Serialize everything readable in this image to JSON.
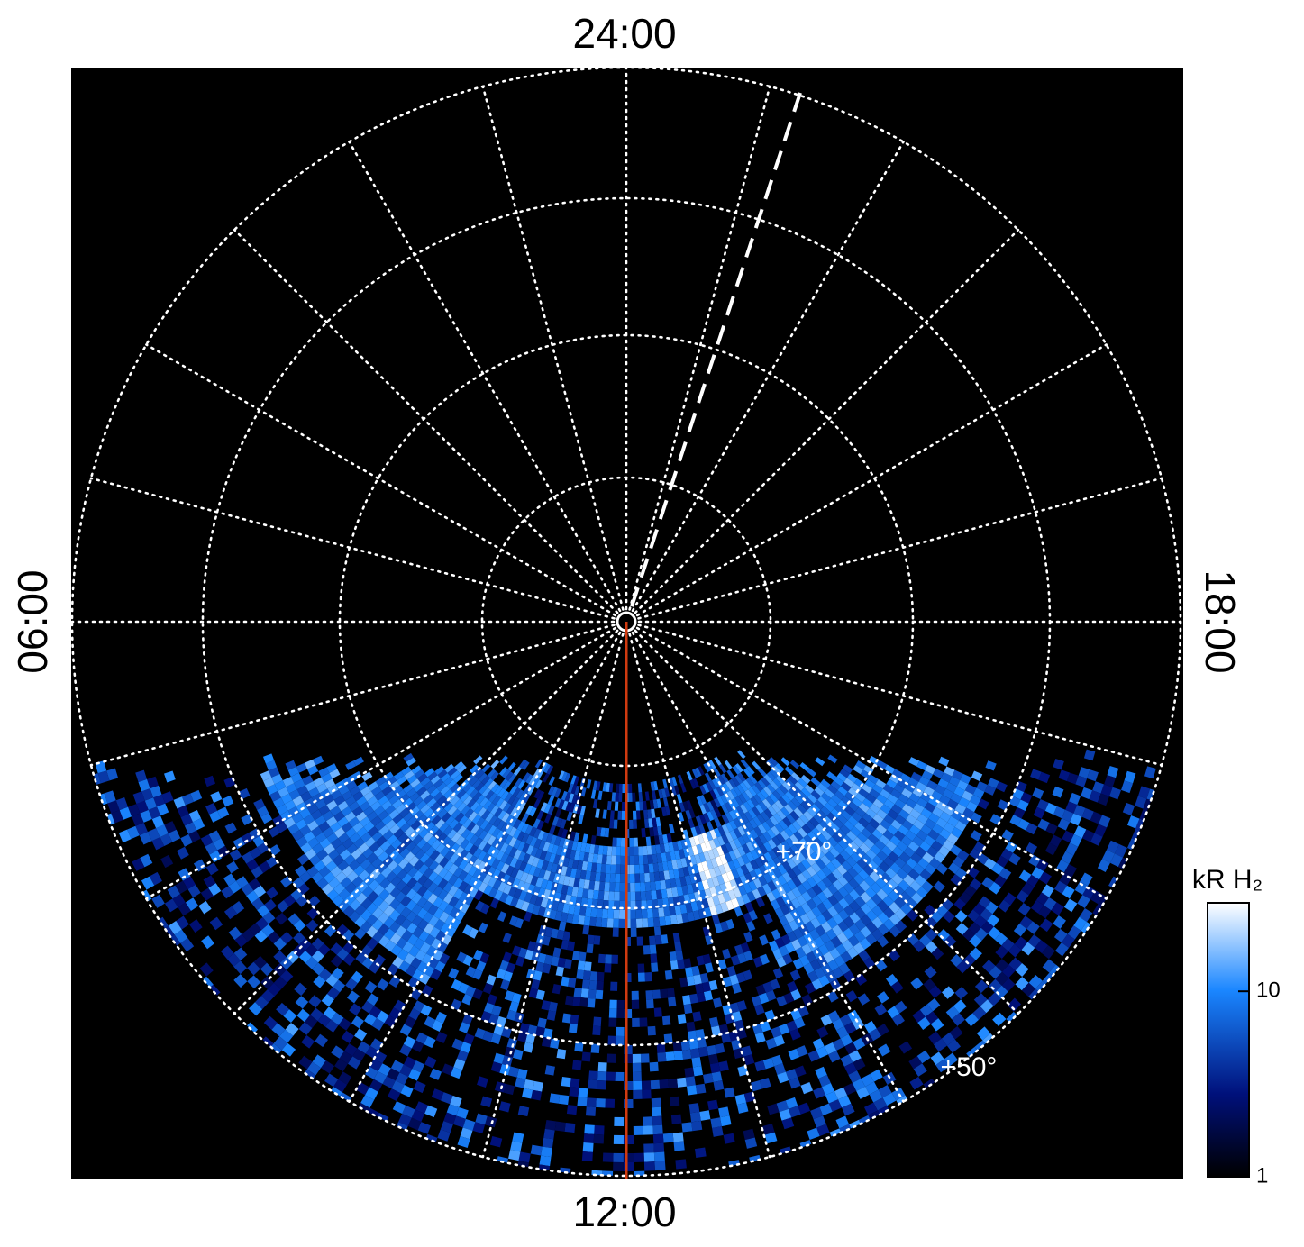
{
  "labels": {
    "top": "24:00",
    "left": "06:00",
    "right": "18:00",
    "bottom": "12:00"
  },
  "latitude_labels": [
    "+70°",
    "+50°"
  ],
  "colorbar": {
    "title": "kR H₂",
    "scale": "log",
    "lim": [
      1,
      30
    ],
    "ticks": [
      1,
      10
    ]
  }
}
